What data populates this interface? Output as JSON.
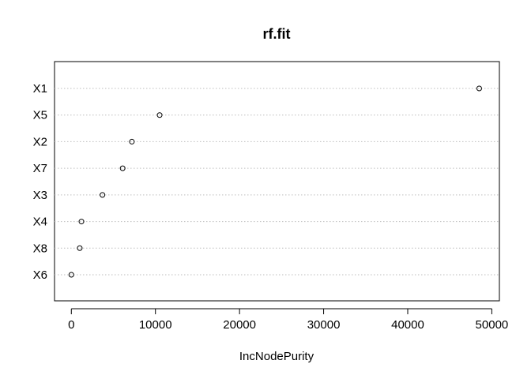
{
  "chart_data": {
    "type": "scatter",
    "title": "rf.fit",
    "xlabel": "IncNodePurity",
    "ylabel": "",
    "xlim": [
      -2000,
      50900
    ],
    "xticks": [
      0,
      10000,
      20000,
      30000,
      40000,
      50000
    ],
    "xtick_labels": [
      "0",
      "10000",
      "20000",
      "30000",
      "40000",
      "50000"
    ],
    "categories": [
      "X1",
      "X5",
      "X2",
      "X7",
      "X3",
      "X4",
      "X8",
      "X6"
    ],
    "values": [
      48500,
      10500,
      7200,
      6100,
      3700,
      1200,
      1000,
      0
    ],
    "grid": "dotted horizontal per category",
    "marker": "open circle",
    "colors": {
      "marker": "#000000",
      "grid": "#bebebe",
      "axis": "#000000"
    }
  }
}
